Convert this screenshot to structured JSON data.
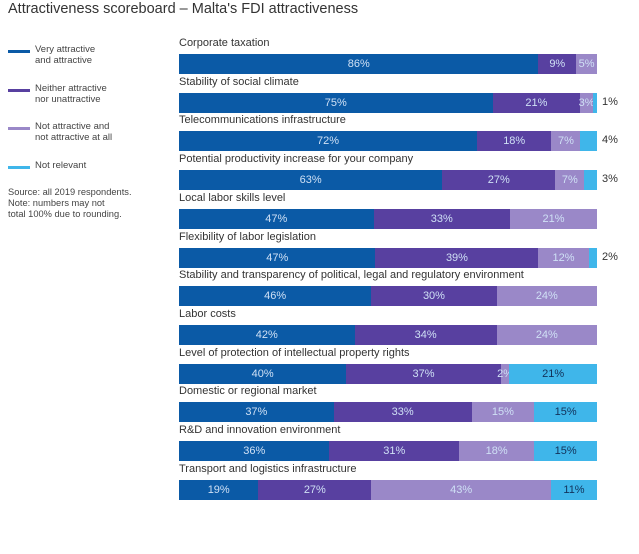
{
  "chart_data": {
    "type": "bar",
    "orientation": "horizontal",
    "stacked": true,
    "title": "Attractiveness scoreboard – Malta's FDI attractiveness",
    "xlabel": "",
    "ylabel": "",
    "xlim": [
      0,
      100
    ],
    "grid": false,
    "legend_position": "left",
    "categories": [
      "Corporate taxation",
      "Stability of social climate",
      "Telecommunications infrastructure",
      "Potential productivity increase for your company",
      "Local labor skills level",
      "Flexibility of labor legislation",
      "Stability and transparency of political, legal and regulatory environment",
      "Labor costs",
      "Level of protection of intellectual property rights",
      "Domestic or regional market",
      "R&D and innovation environment",
      "Transport and logistics infrastructure"
    ],
    "series": [
      {
        "name": "Very attractive and attractive",
        "color": "#0b5aa6",
        "values": [
          86,
          75,
          72,
          63,
          47,
          47,
          46,
          42,
          40,
          37,
          36,
          19
        ]
      },
      {
        "name": "Neither attractive nor unattractive",
        "color": "#5840a0",
        "values": [
          9,
          21,
          18,
          27,
          33,
          39,
          30,
          34,
          37,
          33,
          31,
          27
        ]
      },
      {
        "name": "Not attractive and not attractive at all",
        "color": "#9a88c8",
        "values": [
          5,
          3,
          7,
          7,
          21,
          12,
          24,
          24,
          2,
          15,
          18,
          43
        ]
      },
      {
        "name": "Not relevant",
        "color": "#3fb6ea",
        "values": [
          0,
          1,
          4,
          3,
          0,
          2,
          0,
          0,
          21,
          15,
          15,
          11
        ]
      }
    ],
    "data_labels": [
      [
        "86%",
        "9%",
        "5%",
        null
      ],
      [
        "75%",
        "21%",
        "3%",
        "1%"
      ],
      [
        "72%",
        "18%",
        "7%",
        "4%"
      ],
      [
        "63%",
        "27%",
        "7%",
        "3%"
      ],
      [
        "47%",
        "33%",
        "21%",
        null
      ],
      [
        "47%",
        "39%",
        "12%",
        "2%"
      ],
      [
        "46%",
        "30%",
        "24%",
        null
      ],
      [
        "42%",
        "34%",
        "24%",
        null
      ],
      [
        "40%",
        "37%",
        "2%",
        "21%"
      ],
      [
        "37%",
        "33%",
        "15%",
        "15%"
      ],
      [
        "36%",
        "31%",
        "18%",
        "15%"
      ],
      [
        "19%",
        "27%",
        "43%",
        "11%"
      ]
    ],
    "outside_labels": [
      null,
      "1%",
      "4%",
      "3%",
      null,
      "2%",
      null,
      null,
      null,
      null,
      null,
      null
    ]
  },
  "legend": {
    "items": [
      {
        "label": "Very attractive\nand attractive",
        "color": "#0b5aa6"
      },
      {
        "label": "Neither attractive\nnor unattractive",
        "color": "#5840a0"
      },
      {
        "label": "Not attractive and\nnot attractive at all",
        "color": "#9a88c8"
      },
      {
        "label": "Not relevant",
        "color": "#3fb6ea"
      }
    ]
  },
  "note": "Source: all 2019 respondents.\nNote: numbers may not\ntotal 100% due to rounding."
}
